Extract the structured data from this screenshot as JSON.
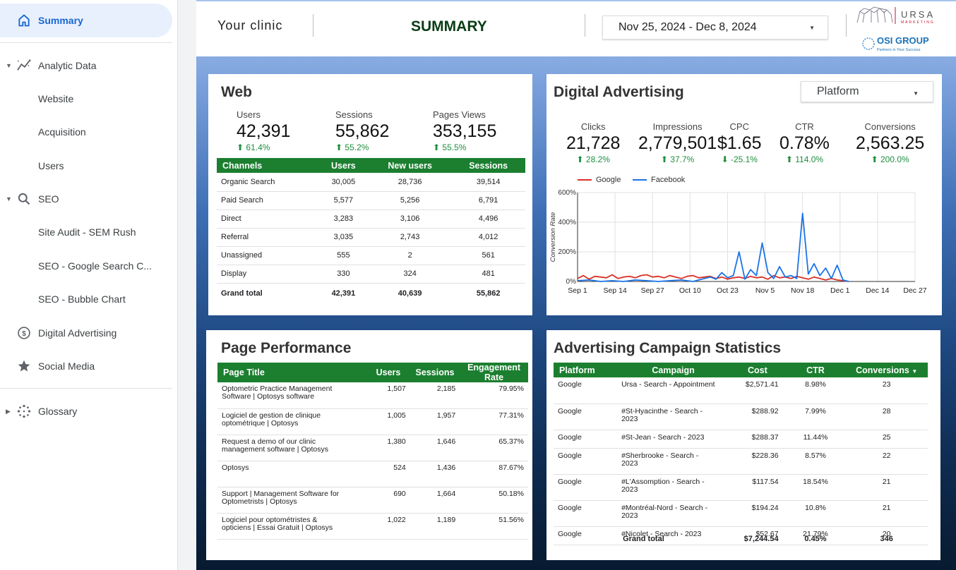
{
  "sidebar": {
    "items": [
      {
        "label": "Summary"
      },
      {
        "label": "Analytic Data"
      },
      {
        "label": "Website"
      },
      {
        "label": "Acquisition"
      },
      {
        "label": "Users"
      },
      {
        "label": "SEO"
      },
      {
        "label": "Site Audit - SEM Rush"
      },
      {
        "label": "SEO - Google Search C..."
      },
      {
        "label": "SEO - Bubble Chart"
      },
      {
        "label": "Digital Advertising"
      },
      {
        "label": "Social Media"
      },
      {
        "label": "Glossary"
      }
    ]
  },
  "header": {
    "clinic": "Your clinic",
    "title": "SUMMARY",
    "date_range": "Nov 25, 2024 - Dec 8, 2024",
    "logo_ursa": "URSA",
    "logo_ursa_sub": "MARKETING",
    "logo_osi": "OSI GROUP",
    "logo_osi_sub": "Partners in Your Success"
  },
  "web": {
    "title": "Web",
    "metrics": [
      {
        "label": "Users",
        "value": "42,391",
        "change": "61.4%"
      },
      {
        "label": "Sessions",
        "value": "55,862",
        "change": "55.2%"
      },
      {
        "label": "Pages Views",
        "value": "353,155",
        "change": "55.5%"
      }
    ],
    "table": {
      "headers": [
        "Channels",
        "Users",
        "New users",
        "Sessions"
      ],
      "rows": [
        [
          "Organic Search",
          "30,005",
          "28,736",
          "39,514"
        ],
        [
          "Paid Search",
          "5,577",
          "5,256",
          "6,791"
        ],
        [
          "Direct",
          "3,283",
          "3,106",
          "4,496"
        ],
        [
          "Referral",
          "3,035",
          "2,743",
          "4,012"
        ],
        [
          "Unassigned",
          "555",
          "2",
          "561"
        ],
        [
          "Display",
          "330",
          "324",
          "481"
        ]
      ],
      "total": [
        "Grand total",
        "42,391",
        "40,639",
        "55,862"
      ]
    }
  },
  "ads": {
    "title": "Digital Advertising",
    "platform_label": "Platform",
    "metrics": [
      {
        "label": "Clicks",
        "value": "21,728",
        "change": "28.2%",
        "dir": "up"
      },
      {
        "label": "Impressions",
        "value": "2,779,501",
        "change": "37.7%",
        "dir": "up"
      },
      {
        "label": "CPC",
        "value": "$1.65",
        "change": "-25.1%",
        "dir": "down"
      },
      {
        "label": "CTR",
        "value": "0.78%",
        "change": "114.0%",
        "dir": "up"
      },
      {
        "label": "Conversions",
        "value": "2,563.25",
        "change": "200.0%",
        "dir": "up"
      }
    ]
  },
  "chart_data": {
    "type": "line",
    "title": "",
    "xlabel": "",
    "ylabel": "Conversion Rate",
    "x_ticks": [
      "Sep 1",
      "Sep 14",
      "Sep 27",
      "Oct 10",
      "Oct 23",
      "Nov 5",
      "Nov 18",
      "Dec 1",
      "Dec 14",
      "Dec 27"
    ],
    "y_ticks": [
      "0%",
      "200%",
      "400%",
      "600%"
    ],
    "ylim": [
      0,
      600
    ],
    "legend_placement": "top-left",
    "x_days_range": [
      0,
      117
    ],
    "series": [
      {
        "name": "Google",
        "color": "#d93025",
        "x": [
          0,
          2,
          4,
          6,
          8,
          10,
          12,
          14,
          16,
          18,
          20,
          22,
          24,
          26,
          28,
          30,
          32,
          34,
          36,
          38,
          40,
          42,
          44,
          46,
          48,
          50,
          52,
          54,
          56,
          58,
          60,
          62,
          64,
          66,
          68,
          70,
          72,
          74,
          76,
          78,
          80,
          82,
          84,
          86,
          88,
          90,
          92,
          94
        ],
        "y": [
          20,
          40,
          15,
          35,
          30,
          25,
          45,
          20,
          30,
          35,
          25,
          40,
          45,
          30,
          35,
          25,
          40,
          30,
          20,
          35,
          40,
          25,
          30,
          35,
          20,
          30,
          15,
          25,
          30,
          20,
          35,
          25,
          30,
          15,
          40,
          25,
          30,
          20,
          35,
          25,
          15,
          30,
          20,
          10,
          20,
          10,
          5,
          0
        ]
      },
      {
        "name": "Facebook",
        "color": "#1a73e8",
        "x": [
          0,
          4,
          8,
          12,
          16,
          20,
          24,
          28,
          32,
          36,
          40,
          44,
          46,
          48,
          50,
          52,
          54,
          56,
          58,
          60,
          62,
          64,
          66,
          68,
          70,
          72,
          74,
          76,
          78,
          80,
          82,
          84,
          86,
          88,
          90,
          92,
          94
        ],
        "y": [
          5,
          10,
          0,
          5,
          0,
          10,
          5,
          0,
          5,
          10,
          0,
          20,
          30,
          15,
          60,
          25,
          40,
          200,
          15,
          80,
          40,
          260,
          60,
          20,
          100,
          30,
          40,
          20,
          460,
          50,
          120,
          40,
          90,
          20,
          110,
          10,
          0
        ]
      }
    ]
  },
  "page_perf": {
    "title": "Page Performance",
    "headers": [
      "Page Title",
      "Users",
      "Sessions",
      "Engagement Rate"
    ],
    "rows": [
      [
        "Optometric Practice Management Software | Optosys software",
        "1,507",
        "2,185",
        "79.95%"
      ],
      [
        "Logiciel de gestion de clinique optométrique | Optosys",
        "1,005",
        "1,957",
        "77.31%"
      ],
      [
        "Request a demo of our clinic management software | Optosys",
        "1,380",
        "1,646",
        "65.37%"
      ],
      [
        "Optosys",
        "524",
        "1,436",
        "87.67%"
      ],
      [
        "Support | Management Software for Optometrists | Optosys",
        "690",
        "1,664",
        "50.18%"
      ],
      [
        "Logiciel pour optométristes & opticiens | Essai Gratuit | Optosys",
        "1,022",
        "1,189",
        "51.56%"
      ]
    ]
  },
  "campaigns": {
    "title": "Advertising Campaign Statistics",
    "headers": [
      "Platform",
      "Campaign",
      "Cost",
      "CTR",
      "Conversions"
    ],
    "rows": [
      [
        "Google",
        "Ursa - Search - Appointment",
        "$2,571.41",
        "8.98%",
        "23"
      ],
      [
        "Google",
        "#St-Hyacinthe - Search - 2023",
        "$288.92",
        "7.99%",
        "28"
      ],
      [
        "Google",
        "#St-Jean - Search - 2023",
        "$288.37",
        "11.44%",
        "25"
      ],
      [
        "Google",
        "#Sherbrooke - Search - 2023",
        "$228.36",
        "8.57%",
        "22"
      ],
      [
        "Google",
        "#L'Assomption - Search - 2023",
        "$117.54",
        "18.54%",
        "21"
      ],
      [
        "Google",
        "#Montréal-Nord - Search - 2023",
        "$194.24",
        "10.8%",
        "21"
      ],
      [
        "Google",
        "#Nicolet - Search - 2023",
        "$52.67",
        "21.79%",
        "20"
      ]
    ],
    "total": [
      "",
      "Grand total",
      "$7,244.54",
      "0.45%",
      "346"
    ]
  }
}
